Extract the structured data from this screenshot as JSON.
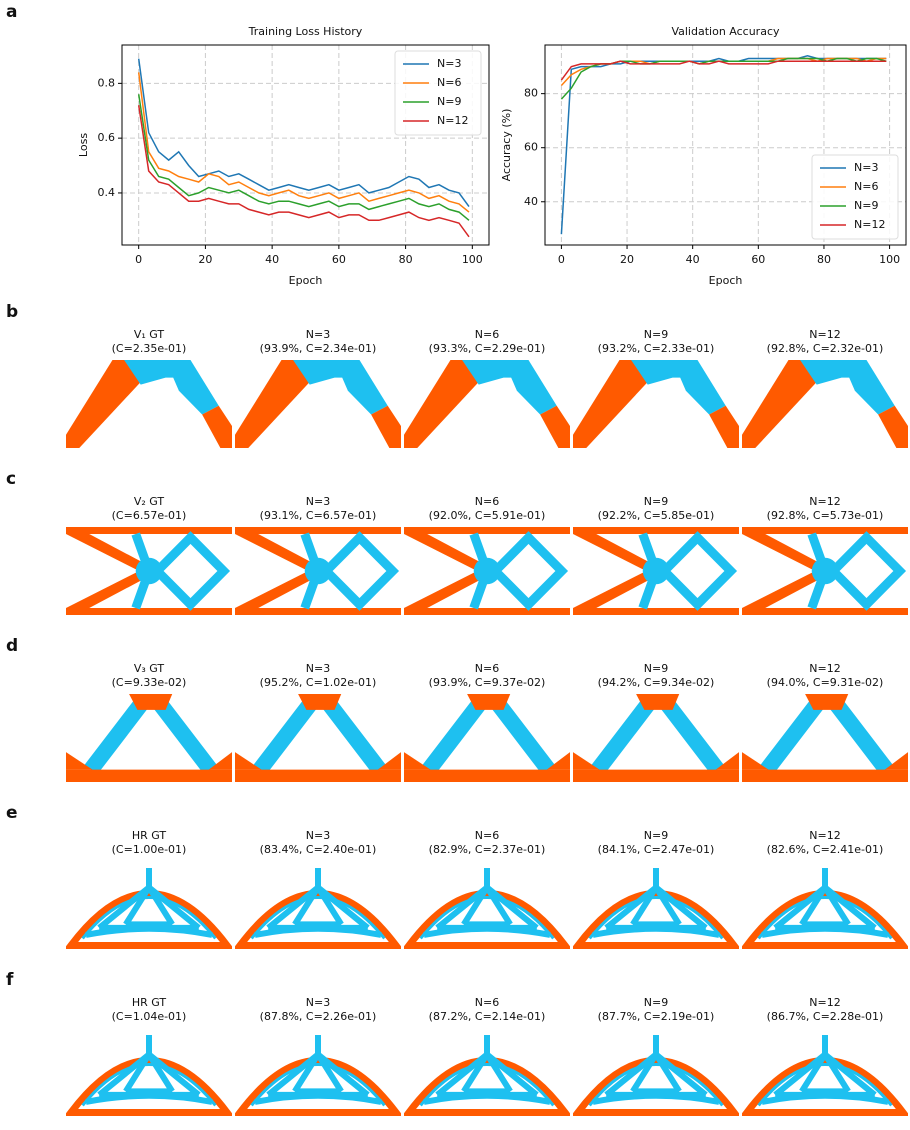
{
  "panel_label": "a",
  "chart_data": [
    {
      "type": "line",
      "title": "Training Loss History",
      "x_label": "Epoch",
      "y_label": "Loss",
      "x": [
        0,
        3,
        6,
        9,
        12,
        15,
        18,
        21,
        24,
        27,
        30,
        33,
        36,
        39,
        42,
        45,
        48,
        51,
        54,
        57,
        60,
        63,
        66,
        69,
        72,
        75,
        78,
        81,
        84,
        87,
        90,
        93,
        96,
        99
      ],
      "series": [
        {
          "name": "N=3",
          "color": "#1f77b4",
          "values": [
            0.89,
            0.62,
            0.55,
            0.52,
            0.55,
            0.5,
            0.46,
            0.47,
            0.48,
            0.46,
            0.47,
            0.45,
            0.43,
            0.41,
            0.42,
            0.43,
            0.42,
            0.41,
            0.42,
            0.43,
            0.41,
            0.42,
            0.43,
            0.4,
            0.41,
            0.42,
            0.44,
            0.46,
            0.45,
            0.42,
            0.43,
            0.41,
            0.4,
            0.35
          ]
        },
        {
          "name": "N=6",
          "color": "#ff7f0e",
          "values": [
            0.84,
            0.55,
            0.49,
            0.48,
            0.46,
            0.45,
            0.44,
            0.47,
            0.46,
            0.43,
            0.44,
            0.42,
            0.4,
            0.39,
            0.4,
            0.41,
            0.39,
            0.38,
            0.39,
            0.4,
            0.38,
            0.39,
            0.4,
            0.37,
            0.38,
            0.39,
            0.4,
            0.41,
            0.4,
            0.38,
            0.39,
            0.37,
            0.36,
            0.33
          ]
        },
        {
          "name": "N=9",
          "color": "#2ca02c",
          "values": [
            0.76,
            0.52,
            0.46,
            0.45,
            0.42,
            0.39,
            0.4,
            0.42,
            0.41,
            0.4,
            0.41,
            0.39,
            0.37,
            0.36,
            0.37,
            0.37,
            0.36,
            0.35,
            0.36,
            0.37,
            0.35,
            0.36,
            0.36,
            0.34,
            0.35,
            0.36,
            0.37,
            0.38,
            0.36,
            0.35,
            0.36,
            0.34,
            0.33,
            0.3
          ]
        },
        {
          "name": "N=12",
          "color": "#d62728",
          "values": [
            0.72,
            0.48,
            0.44,
            0.43,
            0.4,
            0.37,
            0.37,
            0.38,
            0.37,
            0.36,
            0.36,
            0.34,
            0.33,
            0.32,
            0.33,
            0.33,
            0.32,
            0.31,
            0.32,
            0.33,
            0.31,
            0.32,
            0.32,
            0.3,
            0.3,
            0.31,
            0.32,
            0.33,
            0.31,
            0.3,
            0.31,
            0.3,
            0.29,
            0.24
          ]
        }
      ],
      "xlim": [
        -5,
        105
      ],
      "ylim": [
        0.21,
        0.94
      ],
      "xticks": [
        0,
        20,
        40,
        60,
        80,
        100
      ],
      "yticks": [
        0.4,
        0.6,
        0.8
      ],
      "grid": true,
      "legend": "upper-right"
    },
    {
      "type": "line",
      "title": "Validation Accuracy",
      "x_label": "Epoch",
      "y_label": "Accuracy (%)",
      "x": [
        0,
        3,
        6,
        9,
        12,
        15,
        18,
        21,
        24,
        27,
        30,
        33,
        36,
        39,
        42,
        45,
        48,
        51,
        54,
        57,
        60,
        63,
        66,
        69,
        72,
        75,
        78,
        81,
        84,
        87,
        90,
        93,
        96,
        99
      ],
      "series": [
        {
          "name": "N=3",
          "color": "#1f77b4",
          "values": [
            28,
            89,
            90,
            90,
            90,
            91,
            91,
            92,
            92,
            92,
            92,
            92,
            92,
            92,
            92,
            92,
            93,
            92,
            92,
            93,
            93,
            93,
            93,
            93,
            93,
            94,
            93,
            93,
            93,
            93,
            93,
            93,
            93,
            93
          ]
        },
        {
          "name": "N=6",
          "color": "#ff7f0e",
          "values": [
            83,
            87,
            89,
            90,
            91,
            91,
            92,
            92,
            92,
            91,
            92,
            92,
            92,
            92,
            91,
            92,
            92,
            92,
            92,
            92,
            92,
            92,
            93,
            93,
            93,
            93,
            92,
            93,
            93,
            93,
            93,
            92,
            93,
            93
          ]
        },
        {
          "name": "N=9",
          "color": "#2ca02c",
          "values": [
            78,
            82,
            88,
            90,
            91,
            91,
            92,
            92,
            91,
            91,
            92,
            92,
            92,
            92,
            91,
            92,
            92,
            92,
            92,
            92,
            92,
            92,
            92,
            93,
            93,
            93,
            93,
            92,
            93,
            93,
            92,
            93,
            93,
            92
          ]
        },
        {
          "name": "N=12",
          "color": "#d62728",
          "values": [
            85,
            90,
            91,
            91,
            91,
            91,
            92,
            91,
            91,
            91,
            91,
            91,
            91,
            92,
            91,
            91,
            92,
            91,
            91,
            91,
            91,
            91,
            92,
            92,
            92,
            92,
            92,
            92,
            92,
            92,
            92,
            92,
            92,
            92
          ]
        }
      ],
      "xlim": [
        -5,
        105
      ],
      "ylim": [
        24,
        98
      ],
      "xticks": [
        0,
        20,
        40,
        60,
        80,
        100
      ],
      "yticks": [
        40,
        60,
        80
      ],
      "grid": true,
      "legend": "lower-right"
    }
  ],
  "panels": [
    {
      "label": "b",
      "shape": "v1",
      "columns": [
        {
          "title": "V₁ GT",
          "subtitle": "(C=2.35e-01)"
        },
        {
          "title": "N=3",
          "subtitle": "(93.9%, C=2.34e-01)"
        },
        {
          "title": "N=6",
          "subtitle": "(93.3%, C=2.29e-01)"
        },
        {
          "title": "N=9",
          "subtitle": "(93.2%, C=2.33e-01)"
        },
        {
          "title": "N=12",
          "subtitle": "(92.8%, C=2.32e-01)"
        }
      ]
    },
    {
      "label": "c",
      "shape": "v2",
      "columns": [
        {
          "title": "V₂ GT",
          "subtitle": "(C=6.57e-01)"
        },
        {
          "title": "N=3",
          "subtitle": "(93.1%, C=6.57e-01)"
        },
        {
          "title": "N=6",
          "subtitle": "(92.0%, C=5.91e-01)"
        },
        {
          "title": "N=9",
          "subtitle": "(92.2%, C=5.85e-01)"
        },
        {
          "title": "N=12",
          "subtitle": "(92.8%, C=5.73e-01)"
        }
      ]
    },
    {
      "label": "d",
      "shape": "v3",
      "columns": [
        {
          "title": "V₃ GT",
          "subtitle": "(C=9.33e-02)"
        },
        {
          "title": "N=3",
          "subtitle": "(95.2%, C=1.02e-01)"
        },
        {
          "title": "N=6",
          "subtitle": "(93.9%, C=9.37e-02)"
        },
        {
          "title": "N=9",
          "subtitle": "(94.2%, C=9.34e-02)"
        },
        {
          "title": "N=12",
          "subtitle": "(94.0%, C=9.31e-02)"
        }
      ]
    },
    {
      "label": "e",
      "shape": "hr",
      "columns": [
        {
          "title": "HR GT",
          "subtitle": "(C=1.00e-01)"
        },
        {
          "title": "N=3",
          "subtitle": "(83.4%, C=2.40e-01)"
        },
        {
          "title": "N=6",
          "subtitle": "(82.9%, C=2.37e-01)"
        },
        {
          "title": "N=9",
          "subtitle": "(84.1%, C=2.47e-01)"
        },
        {
          "title": "N=12",
          "subtitle": "(82.6%, C=2.41e-01)"
        }
      ]
    },
    {
      "label": "f",
      "shape": "hr",
      "columns": [
        {
          "title": "HR GT",
          "subtitle": "(C=1.04e-01)"
        },
        {
          "title": "N=3",
          "subtitle": "(87.8%, C=2.26e-01)"
        },
        {
          "title": "N=6",
          "subtitle": "(87.2%, C=2.14e-01)"
        },
        {
          "title": "N=9",
          "subtitle": "(87.7%, C=2.19e-01)"
        },
        {
          "title": "N=12",
          "subtitle": "(86.7%, C=2.28e-01)"
        }
      ]
    }
  ]
}
